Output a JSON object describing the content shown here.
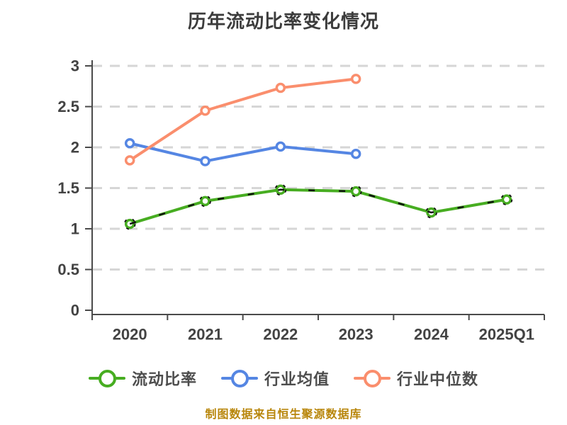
{
  "chart_data": {
    "type": "line",
    "title": "历年流动比率变化情况",
    "categories": [
      "2020",
      "2021",
      "2022",
      "2023",
      "2024",
      "2025Q1"
    ],
    "series": [
      {
        "name": "流动比率",
        "color": "#47ad21",
        "values": [
          1.06,
          1.34,
          1.48,
          1.46,
          1.2,
          1.36
        ],
        "marker": "white-circle",
        "black_dashed_overlay": true
      },
      {
        "name": "行业均值",
        "color": "#5586e3",
        "values": [
          2.05,
          1.83,
          2.01,
          1.92,
          null,
          null
        ],
        "marker": "white-circle",
        "black_dashed_overlay": false
      },
      {
        "name": "行业中位数",
        "color": "#fa8e6d",
        "values": [
          1.84,
          2.45,
          2.73,
          2.84,
          null,
          null
        ],
        "marker": "white-circle",
        "black_dashed_overlay": false
      }
    ],
    "ylim": [
      0,
      3
    ],
    "ytick_step": 0.5,
    "ytick_labels": [
      "0",
      "0.5",
      "1",
      "1.5",
      "2",
      "2.5",
      "3"
    ],
    "xlabel": "",
    "ylabel": "",
    "grid": "horizontal-dashed",
    "grid_color": "#d6d6d6",
    "axis_color": "#4a4a4a",
    "tick_label_color": "#434343",
    "legend_position": "bottom"
  },
  "footer": {
    "source_note": "制图数据来自恒生聚源数据库"
  }
}
